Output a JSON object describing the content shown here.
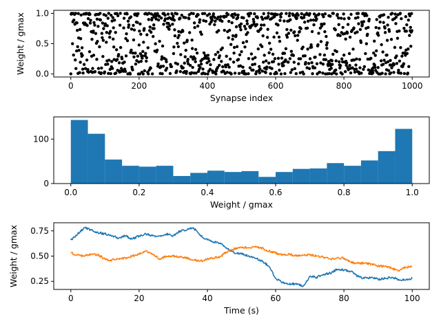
{
  "chart_data": [
    {
      "type": "scatter",
      "title": "",
      "xlabel": "Synapse index",
      "ylabel": "Weight / gmax",
      "xlim": [
        -50,
        1050
      ],
      "ylim": [
        -0.05,
        1.05
      ],
      "xticks": [
        0,
        200,
        400,
        600,
        800,
        1000
      ],
      "yticks": [
        0.0,
        0.5,
        1.0
      ],
      "xtick_labels": [
        "0",
        "200",
        "400",
        "600",
        "800",
        "1000"
      ],
      "ytick_labels": [
        "0.0",
        "0.5",
        "1.0"
      ],
      "grid": false,
      "marker_color": "#000000",
      "n_points": 1000,
      "distribution": "bimodal, clustered near 0 and 1"
    },
    {
      "type": "bar",
      "title": "",
      "xlabel": "Weight / gmax",
      "ylabel": "",
      "bin_edges": [
        0.0,
        0.05,
        0.1,
        0.15,
        0.2,
        0.25,
        0.3,
        0.35,
        0.4,
        0.45,
        0.5,
        0.55,
        0.6,
        0.65,
        0.7,
        0.75,
        0.8,
        0.85,
        0.9,
        0.95,
        1.0
      ],
      "values": [
        143,
        112,
        54,
        40,
        38,
        40,
        17,
        24,
        29,
        26,
        28,
        15,
        26,
        33,
        34,
        46,
        40,
        52,
        73,
        123
      ],
      "xlim": [
        -0.05,
        1.05
      ],
      "ylim": [
        0,
        150
      ],
      "xticks": [
        0.0,
        0.2,
        0.4,
        0.6,
        0.8,
        1.0
      ],
      "yticks": [
        0,
        100
      ],
      "xtick_labels": [
        "0.0",
        "0.2",
        "0.4",
        "0.6",
        "0.8",
        "1.0"
      ],
      "ytick_labels": [
        "0",
        "100"
      ],
      "grid": false,
      "bar_color": "#1f77b4"
    },
    {
      "type": "line",
      "title": "",
      "xlabel": "Time (s)",
      "ylabel": "Weight / gmax",
      "xlim": [
        -5,
        105
      ],
      "ylim": [
        0.17,
        0.83
      ],
      "xticks": [
        0,
        20,
        40,
        60,
        80,
        100
      ],
      "yticks": [
        0.25,
        0.5,
        0.75
      ],
      "xtick_labels": [
        "0",
        "20",
        "40",
        "60",
        "80",
        "100"
      ],
      "ytick_labels": [
        "0.25",
        "0.50",
        "0.75"
      ],
      "grid": false,
      "series": [
        {
          "color": "#1f77b4",
          "x": [
            0,
            2,
            4,
            6,
            8,
            10,
            12,
            14,
            16,
            18,
            20,
            22,
            24,
            26,
            28,
            30,
            32,
            34,
            36,
            38,
            40,
            42,
            44,
            46,
            48,
            50,
            52,
            54,
            56,
            58,
            60,
            62,
            64,
            66,
            68,
            70,
            72,
            74,
            76,
            78,
            80,
            82,
            84,
            86,
            88,
            90,
            92,
            94,
            96,
            98,
            100
          ],
          "values": [
            0.66,
            0.72,
            0.78,
            0.76,
            0.73,
            0.72,
            0.7,
            0.68,
            0.7,
            0.67,
            0.7,
            0.72,
            0.7,
            0.7,
            0.72,
            0.7,
            0.75,
            0.76,
            0.78,
            0.7,
            0.66,
            0.64,
            0.62,
            0.57,
            0.53,
            0.52,
            0.5,
            0.48,
            0.45,
            0.4,
            0.28,
            0.24,
            0.22,
            0.23,
            0.2,
            0.3,
            0.29,
            0.32,
            0.33,
            0.37,
            0.36,
            0.35,
            0.3,
            0.28,
            0.29,
            0.27,
            0.28,
            0.29,
            0.27,
            0.26,
            0.28
          ]
        },
        {
          "color": "#ff7f0e",
          "x": [
            0,
            2,
            4,
            6,
            8,
            10,
            12,
            14,
            16,
            18,
            20,
            22,
            24,
            26,
            28,
            30,
            32,
            34,
            36,
            38,
            40,
            42,
            44,
            46,
            48,
            50,
            52,
            54,
            56,
            58,
            60,
            62,
            64,
            66,
            68,
            70,
            72,
            74,
            76,
            78,
            80,
            82,
            84,
            86,
            88,
            90,
            92,
            94,
            96,
            98,
            100
          ],
          "values": [
            0.53,
            0.51,
            0.5,
            0.52,
            0.51,
            0.47,
            0.46,
            0.47,
            0.48,
            0.5,
            0.52,
            0.55,
            0.52,
            0.47,
            0.5,
            0.5,
            0.49,
            0.48,
            0.46,
            0.45,
            0.47,
            0.48,
            0.5,
            0.55,
            0.57,
            0.59,
            0.58,
            0.59,
            0.58,
            0.55,
            0.53,
            0.51,
            0.52,
            0.5,
            0.51,
            0.51,
            0.5,
            0.49,
            0.47,
            0.48,
            0.48,
            0.44,
            0.43,
            0.43,
            0.42,
            0.4,
            0.4,
            0.38,
            0.35,
            0.39,
            0.4
          ]
        }
      ]
    }
  ]
}
